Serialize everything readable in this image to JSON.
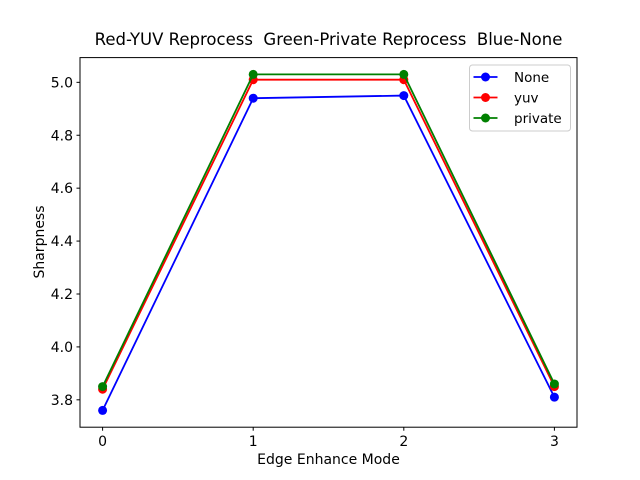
{
  "chart_data": {
    "type": "line",
    "title": "Red-YUV Reprocess  Green-Private Reprocess  Blue-None",
    "xlabel": "Edge Enhance Mode",
    "ylabel": "Sharpness",
    "x": [
      0,
      1,
      2,
      3
    ],
    "series": [
      {
        "name": "None",
        "color": "#0000ff",
        "values": [
          3.76,
          4.94,
          4.95,
          3.81
        ]
      },
      {
        "name": "yuv",
        "color": "#ff0000",
        "values": [
          3.84,
          5.01,
          5.01,
          3.85
        ]
      },
      {
        "name": "private",
        "color": "#008000",
        "values": [
          3.85,
          5.03,
          5.03,
          3.86
        ]
      }
    ],
    "xticks": {
      "values": [
        0,
        1,
        2,
        3
      ],
      "labels": [
        "0",
        "1",
        "2",
        "3"
      ]
    },
    "yticks": {
      "values": [
        3.8,
        4.0,
        4.2,
        4.4,
        4.6,
        4.8,
        5.0
      ],
      "labels": [
        "3.8",
        "4.0",
        "4.2",
        "4.4",
        "4.6",
        "4.8",
        "5.0"
      ]
    },
    "xlim": [
      -0.15,
      3.15
    ],
    "ylim": [
      3.6965,
      5.0935
    ],
    "legend": {
      "position": "upper right",
      "labels": [
        "None",
        "yuv",
        "private"
      ]
    },
    "marker": "circle",
    "grid": false,
    "axis_color": "#000000",
    "legend_border_color": "#cccccc",
    "background": "#ffffff"
  }
}
